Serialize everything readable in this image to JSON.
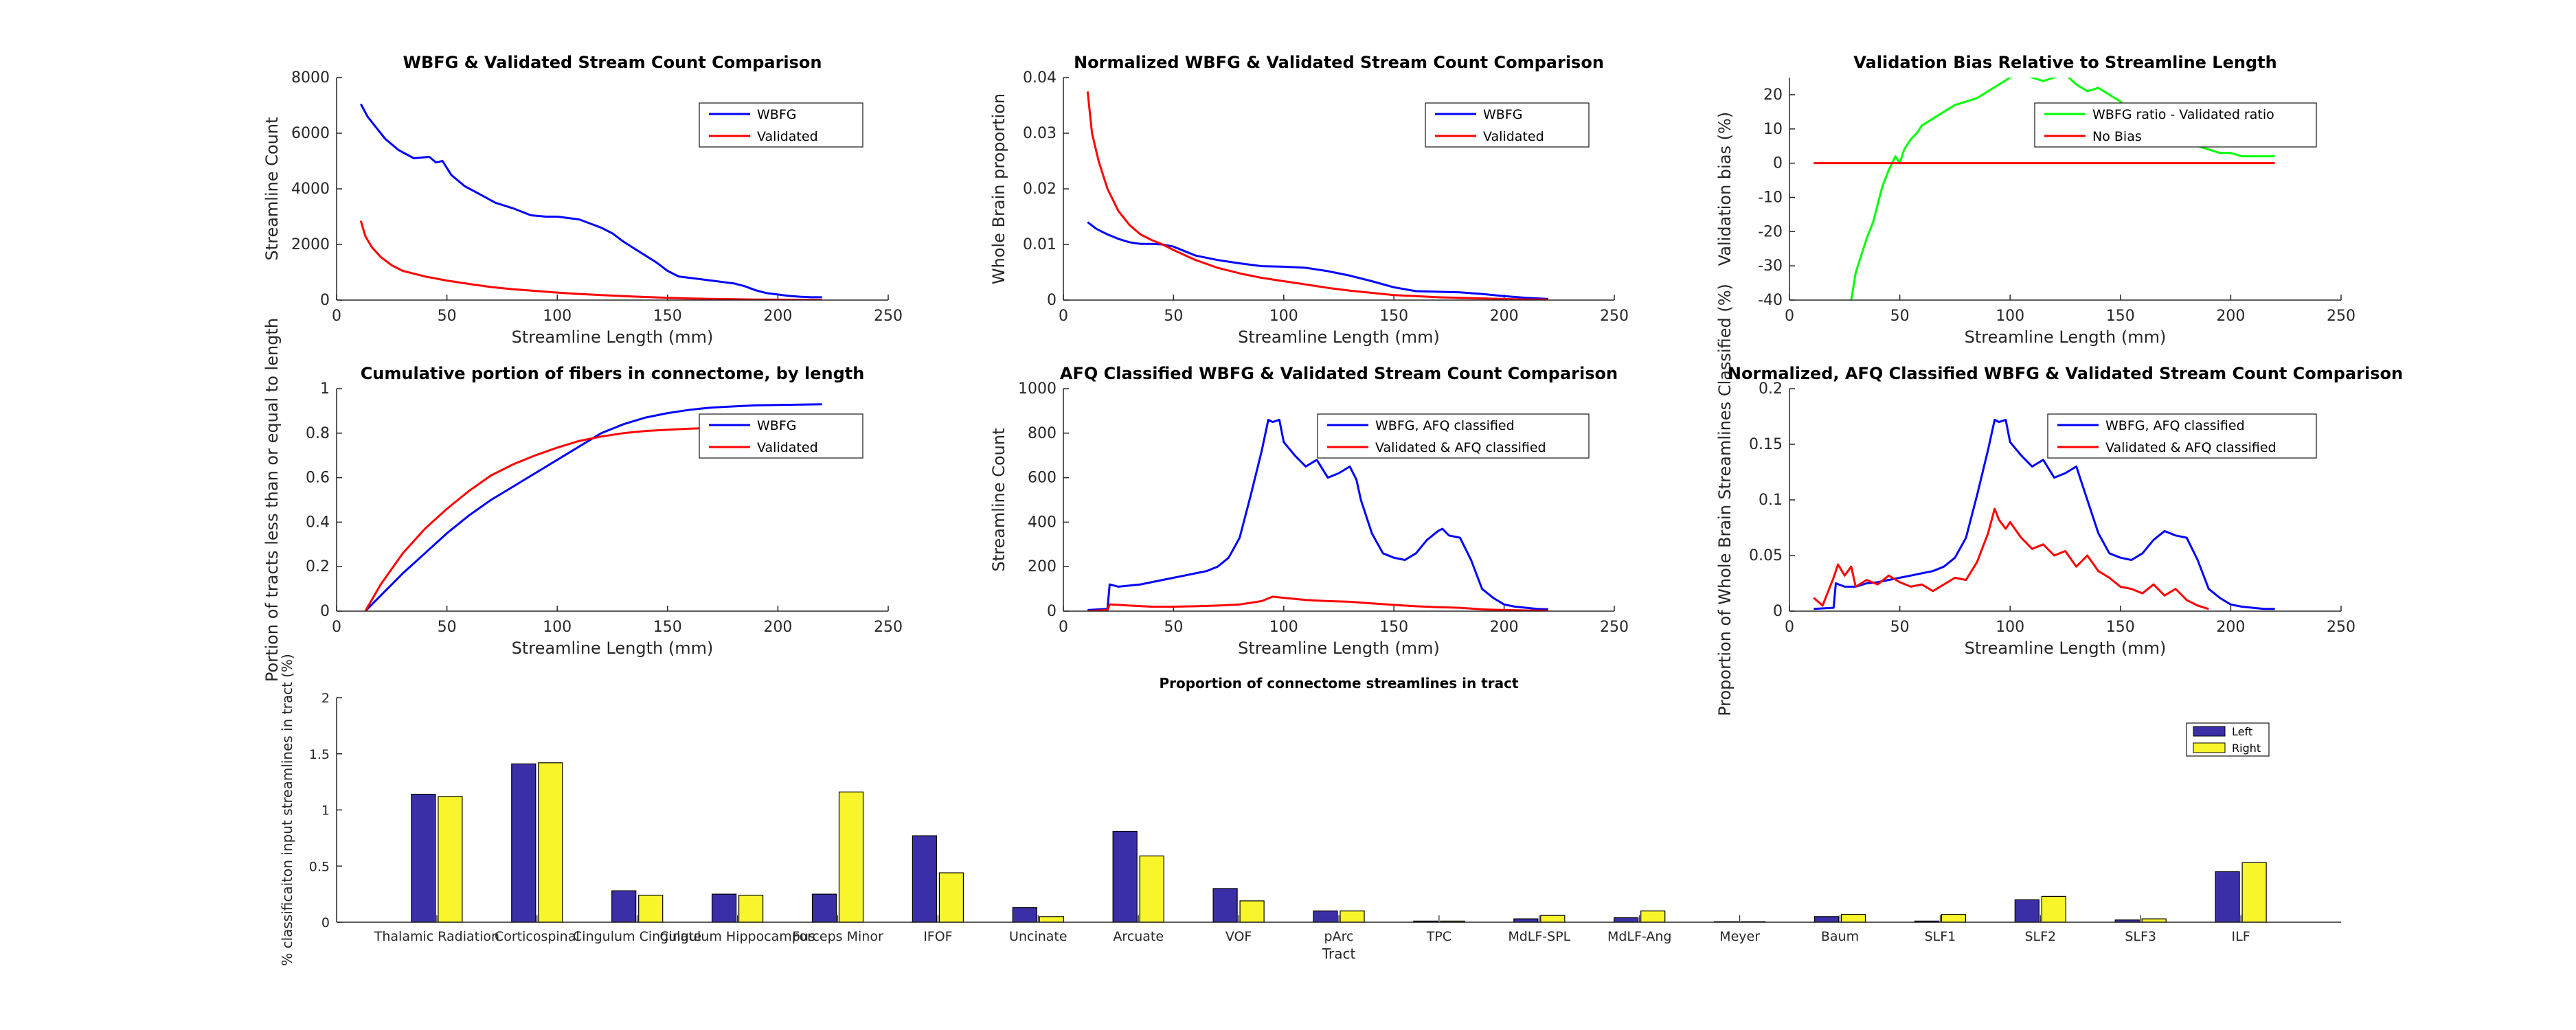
{
  "chart_data": [
    {
      "id": "p1",
      "type": "line",
      "title": "WBFG & Validated Stream Count Comparison",
      "xlabel": "Streamline Length (mm)",
      "ylabel": "Streamline Count",
      "xlim": [
        0,
        250
      ],
      "ylim": [
        0,
        8000
      ],
      "xticks": [
        "0",
        "50",
        "100",
        "150",
        "200",
        "250"
      ],
      "yticks": [
        "0",
        "2000",
        "4000",
        "6000",
        "8000"
      ],
      "legend_position": "top-right",
      "series": [
        {
          "name": "WBFG",
          "color": "#0000ff",
          "x": [
            11,
            14,
            18,
            22,
            28,
            35,
            42,
            45,
            48,
            52,
            58,
            65,
            72,
            80,
            88,
            95,
            100,
            105,
            110,
            115,
            120,
            125,
            130,
            135,
            140,
            145,
            150,
            155,
            160,
            165,
            170,
            175,
            180,
            185,
            190,
            195,
            200,
            205,
            210,
            215,
            220
          ],
          "y": [
            7050,
            6600,
            6200,
            5800,
            5400,
            5100,
            5150,
            4950,
            5000,
            4500,
            4100,
            3800,
            3500,
            3300,
            3050,
            3000,
            3000,
            2950,
            2900,
            2750,
            2600,
            2400,
            2100,
            1850,
            1600,
            1350,
            1050,
            850,
            800,
            750,
            700,
            650,
            600,
            500,
            350,
            250,
            200,
            150,
            120,
            100,
            100
          ]
        },
        {
          "name": "Validated",
          "color": "#ff0000",
          "x": [
            11,
            13,
            16,
            20,
            25,
            30,
            40,
            50,
            60,
            70,
            80,
            90,
            100,
            110,
            120,
            130,
            140,
            150,
            160,
            170,
            180,
            190,
            200,
            210,
            220
          ],
          "y": [
            2850,
            2300,
            1900,
            1550,
            1250,
            1050,
            850,
            700,
            580,
            470,
            390,
            330,
            270,
            220,
            180,
            140,
            110,
            80,
            60,
            45,
            30,
            20,
            15,
            10,
            5
          ]
        }
      ]
    },
    {
      "id": "p2",
      "type": "line",
      "title": "Normalized WBFG & Validated Stream Count Comparison",
      "xlabel": "Streamline Length (mm)",
      "ylabel": "Whole Brain proportion",
      "xlim": [
        0,
        250
      ],
      "ylim": [
        0,
        0.04
      ],
      "xticks": [
        "0",
        "50",
        "100",
        "150",
        "200",
        "250"
      ],
      "yticks": [
        "0",
        "0.01",
        "0.02",
        "0.03",
        "0.04"
      ],
      "legend_position": "top-right",
      "series": [
        {
          "name": "WBFG",
          "color": "#0000ff",
          "x": [
            11,
            15,
            20,
            25,
            30,
            35,
            40,
            45,
            50,
            55,
            60,
            70,
            80,
            90,
            100,
            110,
            120,
            130,
            140,
            150,
            160,
            170,
            180,
            190,
            200,
            210,
            220
          ],
          "y": [
            0.014,
            0.0128,
            0.0118,
            0.011,
            0.0104,
            0.0101,
            0.0101,
            0.01,
            0.0096,
            0.0088,
            0.008,
            0.0072,
            0.0066,
            0.0061,
            0.006,
            0.0058,
            0.0052,
            0.0044,
            0.0034,
            0.0023,
            0.0016,
            0.0015,
            0.0014,
            0.0011,
            0.0007,
            0.0004,
            0.0002
          ]
        },
        {
          "name": "Validated",
          "color": "#ff0000",
          "x": [
            11,
            13,
            16,
            20,
            25,
            30,
            35,
            40,
            45,
            50,
            60,
            70,
            80,
            90,
            100,
            110,
            120,
            130,
            140,
            150,
            160,
            170,
            180,
            190,
            200,
            210,
            220
          ],
          "y": [
            0.0375,
            0.03,
            0.025,
            0.02,
            0.016,
            0.0135,
            0.0118,
            0.0108,
            0.01,
            0.009,
            0.0072,
            0.0058,
            0.0048,
            0.004,
            0.0034,
            0.0028,
            0.0022,
            0.0017,
            0.0013,
            0.0009,
            0.0007,
            0.0005,
            0.0004,
            0.0003,
            0.0002,
            0.0001,
            0.0001
          ]
        }
      ]
    },
    {
      "id": "p3",
      "type": "line",
      "title": "Validation Bias Relative to Streamline Length",
      "xlabel": "Streamline Length (mm)",
      "ylabel": "Validation bias (%)",
      "xlim": [
        0,
        250
      ],
      "ylim": [
        -40,
        25
      ],
      "xticks": [
        "0",
        "50",
        "100",
        "150",
        "200",
        "250"
      ],
      "yticks": [
        "-40",
        "-30",
        "-20",
        "-10",
        "0",
        "10",
        "20"
      ],
      "legend_position": "top-right",
      "series": [
        {
          "name": "WBFG ratio - Validated ratio",
          "color": "#00ff00",
          "x": [
            28,
            30,
            32,
            35,
            38,
            40,
            42,
            45,
            48,
            50,
            52,
            55,
            58,
            60,
            65,
            70,
            75,
            80,
            85,
            90,
            95,
            100,
            105,
            110,
            115,
            120,
            125,
            130,
            135,
            140,
            145,
            150,
            155,
            160,
            165,
            170,
            175,
            180,
            185,
            190,
            195,
            200,
            205,
            210,
            215,
            220
          ],
          "y": [
            -40,
            -32,
            -28,
            -22,
            -17,
            -12,
            -7,
            -2,
            2,
            0,
            4,
            7,
            9,
            11,
            13,
            15,
            17,
            18,
            19,
            21,
            23,
            25,
            26,
            25,
            24,
            25,
            26,
            23,
            21,
            22,
            20,
            18,
            14,
            12,
            11,
            9,
            7,
            6,
            5,
            4,
            3,
            3,
            2,
            2,
            2,
            2
          ]
        },
        {
          "name": "No Bias",
          "color": "#ff0000",
          "x": [
            11,
            220
          ],
          "y": [
            0,
            0
          ]
        }
      ]
    },
    {
      "id": "p4",
      "type": "line",
      "title": "Cumulative portion of fibers in connectome, by length",
      "xlabel": "Streamline Length (mm)",
      "ylabel": "Portion of tracts less than or equal to length",
      "xlim": [
        0,
        250
      ],
      "ylim": [
        0,
        1
      ],
      "xticks": [
        "0",
        "50",
        "100",
        "150",
        "200",
        "250"
      ],
      "yticks": [
        "0",
        "0.2",
        "0.4",
        "0.6",
        "0.8",
        "1"
      ],
      "legend_position": "top-right",
      "series": [
        {
          "name": "WBFG",
          "color": "#0000ff",
          "x": [
            13,
            20,
            30,
            40,
            50,
            60,
            70,
            80,
            90,
            100,
            110,
            120,
            130,
            140,
            150,
            160,
            170,
            180,
            190,
            200,
            210,
            220
          ],
          "y": [
            0,
            0.07,
            0.17,
            0.26,
            0.35,
            0.43,
            0.5,
            0.56,
            0.62,
            0.68,
            0.74,
            0.8,
            0.84,
            0.87,
            0.89,
            0.905,
            0.915,
            0.92,
            0.925,
            0.927,
            0.928,
            0.93
          ]
        },
        {
          "name": "Validated",
          "color": "#ff0000",
          "x": [
            13,
            20,
            30,
            40,
            50,
            60,
            70,
            80,
            90,
            100,
            110,
            120,
            130,
            140,
            150,
            160,
            170,
            180,
            190,
            200,
            210,
            220
          ],
          "y": [
            0,
            0.12,
            0.26,
            0.37,
            0.46,
            0.54,
            0.61,
            0.66,
            0.7,
            0.735,
            0.765,
            0.785,
            0.8,
            0.81,
            0.815,
            0.82,
            0.823,
            0.825,
            0.826,
            0.827,
            0.828,
            0.828
          ]
        }
      ]
    },
    {
      "id": "p5",
      "type": "line",
      "title": "AFQ Classified WBFG & Validated Stream Count Comparison",
      "xlabel": "Streamline Length (mm)",
      "ylabel": "Streamline Count",
      "xlim": [
        0,
        250
      ],
      "ylim": [
        0,
        1000
      ],
      "xticks": [
        "0",
        "50",
        "100",
        "150",
        "200",
        "250"
      ],
      "yticks": [
        "0",
        "200",
        "400",
        "600",
        "800",
        "1000"
      ],
      "legend_position": "top-right",
      "series": [
        {
          "name": "WBFG, AFQ classified",
          "color": "#0000ff",
          "x": [
            11,
            20,
            21,
            25,
            30,
            35,
            40,
            45,
            50,
            55,
            60,
            65,
            70,
            75,
            80,
            85,
            90,
            93,
            95,
            98,
            100,
            105,
            110,
            115,
            120,
            125,
            130,
            133,
            135,
            140,
            145,
            150,
            155,
            160,
            165,
            170,
            172,
            175,
            180,
            185,
            190,
            195,
            200,
            205,
            210,
            215,
            220
          ],
          "y": [
            5,
            10,
            120,
            110,
            115,
            120,
            130,
            140,
            150,
            160,
            170,
            180,
            200,
            240,
            330,
            520,
            720,
            860,
            850,
            860,
            760,
            700,
            650,
            680,
            600,
            620,
            650,
            590,
            500,
            350,
            260,
            240,
            230,
            260,
            320,
            360,
            370,
            340,
            330,
            230,
            100,
            60,
            30,
            20,
            15,
            10,
            8
          ]
        },
        {
          "name": "Validated & AFQ classified",
          "color": "#ff0000",
          "x": [
            11,
            20,
            21,
            25,
            30,
            40,
            50,
            60,
            70,
            80,
            90,
            95,
            100,
            110,
            120,
            130,
            140,
            150,
            160,
            170,
            180,
            190,
            200,
            210,
            220
          ],
          "y": [
            0,
            5,
            30,
            28,
            25,
            20,
            20,
            22,
            25,
            30,
            45,
            65,
            60,
            50,
            45,
            42,
            35,
            28,
            22,
            18,
            15,
            8,
            5,
            3,
            2
          ]
        }
      ]
    },
    {
      "id": "p6",
      "type": "line",
      "title": "Normalized, AFQ Classified WBFG & Validated Stream Count Comparison",
      "xlabel": "Streamline Length (mm)",
      "ylabel": "Proportion of Whole Brain Streamlines Classified (%)",
      "xlim": [
        0,
        250
      ],
      "ylim": [
        0,
        0.2
      ],
      "xticks": [
        "0",
        "50",
        "100",
        "150",
        "200",
        "250"
      ],
      "yticks": [
        "0",
        "0.05",
        "0.1",
        "0.15",
        "0.2"
      ],
      "legend_position": "top-right",
      "series": [
        {
          "name": "WBFG, AFQ classified",
          "color": "#0000ff",
          "x": [
            11,
            20,
            21,
            25,
            30,
            35,
            40,
            45,
            50,
            55,
            60,
            65,
            70,
            75,
            80,
            85,
            90,
            93,
            95,
            98,
            100,
            105,
            110,
            115,
            120,
            125,
            130,
            135,
            140,
            145,
            150,
            155,
            160,
            165,
            170,
            175,
            180,
            185,
            190,
            195,
            200,
            205,
            210,
            215,
            220
          ],
          "y": [
            0.002,
            0.003,
            0.025,
            0.022,
            0.022,
            0.025,
            0.026,
            0.028,
            0.03,
            0.032,
            0.034,
            0.036,
            0.04,
            0.048,
            0.066,
            0.104,
            0.145,
            0.172,
            0.17,
            0.172,
            0.152,
            0.14,
            0.13,
            0.136,
            0.12,
            0.124,
            0.13,
            0.1,
            0.07,
            0.052,
            0.048,
            0.046,
            0.052,
            0.064,
            0.072,
            0.068,
            0.066,
            0.046,
            0.02,
            0.012,
            0.006,
            0.004,
            0.003,
            0.002,
            0.002
          ]
        },
        {
          "name": "Validated & AFQ classified",
          "color": "#ff0000",
          "x": [
            11,
            15,
            20,
            22,
            25,
            28,
            30,
            35,
            40,
            45,
            50,
            55,
            60,
            65,
            70,
            75,
            80,
            85,
            90,
            93,
            95,
            98,
            100,
            105,
            110,
            115,
            120,
            125,
            130,
            135,
            140,
            145,
            150,
            155,
            160,
            165,
            170,
            175,
            180,
            185,
            190
          ],
          "y": [
            0.012,
            0.005,
            0.03,
            0.042,
            0.032,
            0.04,
            0.022,
            0.028,
            0.024,
            0.032,
            0.026,
            0.022,
            0.024,
            0.018,
            0.024,
            0.03,
            0.028,
            0.044,
            0.07,
            0.092,
            0.082,
            0.074,
            0.08,
            0.066,
            0.056,
            0.06,
            0.05,
            0.054,
            0.04,
            0.05,
            0.036,
            0.03,
            0.022,
            0.02,
            0.016,
            0.024,
            0.014,
            0.02,
            0.01,
            0.005,
            0.002
          ]
        }
      ]
    },
    {
      "id": "p7",
      "type": "bar",
      "title": "Proportion of connectome streamlines in tract",
      "xlabel": "Tract",
      "ylabel": "% classificaiton input streamlines in tract (%)",
      "ylim": [
        0,
        2
      ],
      "yticks": [
        "0",
        "0.5",
        "1",
        "1.5",
        "2"
      ],
      "legend_position": "top-right",
      "categories": [
        "Thalamic Radiation",
        "Corticospinal",
        "Cingulum Cingulate",
        "Cingulum Hippocampus",
        "Forceps Minor",
        "IFOF",
        "Uncinate",
        "Arcuate",
        "VOF",
        "pArc",
        "TPC",
        "MdLF-SPL",
        "MdLF-Ang",
        "Meyer",
        "Baum",
        "SLF1",
        "SLF2",
        "SLF3",
        "ILF"
      ],
      "series": [
        {
          "name": "Left",
          "color": "#3b2fa8",
          "values": [
            1.14,
            1.41,
            0.28,
            0.25,
            0.25,
            0.77,
            0.13,
            0.81,
            0.3,
            0.1,
            0.01,
            0.03,
            0.04,
            0.005,
            0.05,
            0.01,
            0.2,
            0.02,
            0.45
          ]
        },
        {
          "name": "Right",
          "color": "#f8f62a",
          "values": [
            1.12,
            1.42,
            0.24,
            0.24,
            1.16,
            0.44,
            0.05,
            0.59,
            0.19,
            0.1,
            0.01,
            0.06,
            0.1,
            0.005,
            0.07,
            0.07,
            0.23,
            0.03,
            0.53
          ]
        }
      ]
    }
  ]
}
